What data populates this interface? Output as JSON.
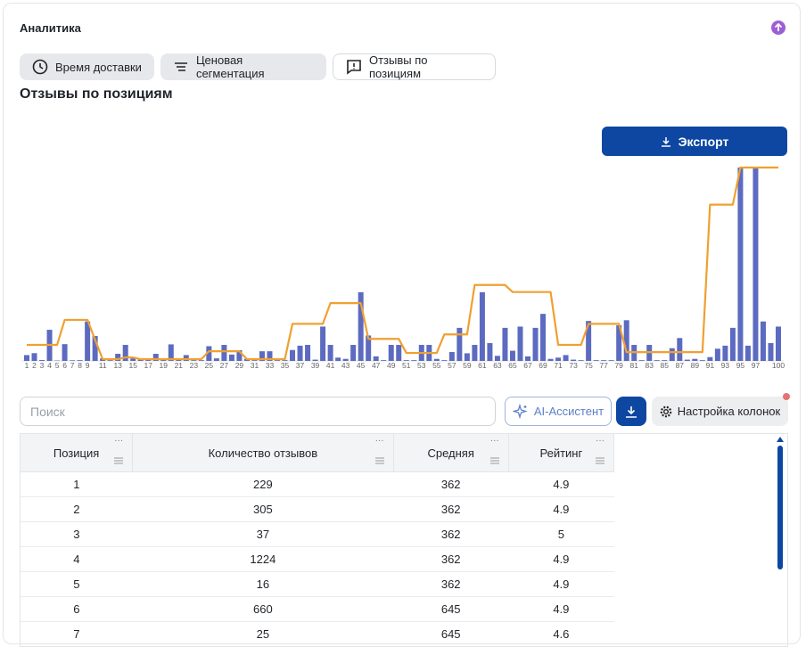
{
  "header": {
    "title": "Аналитика"
  },
  "tabs": [
    "Время доставки",
    "Ценовая сегментация",
    "Отзывы по позициям"
  ],
  "heading": "Отзывы по позициям",
  "export_button": "Экспорт",
  "search_placeholder": "Поиск",
  "ai_button": "AI-Ассистент",
  "columns_button": "Настройка колонок",
  "chart_data": {
    "type": "bar",
    "categories": [
      1,
      2,
      3,
      4,
      5,
      6,
      7,
      8,
      9,
      null,
      11,
      null,
      13,
      null,
      15,
      null,
      17,
      null,
      19,
      null,
      21,
      null,
      23,
      null,
      25,
      null,
      27,
      null,
      29,
      null,
      31,
      null,
      33,
      null,
      35,
      null,
      37,
      null,
      39,
      null,
      41,
      null,
      43,
      null,
      45,
      null,
      47,
      null,
      49,
      null,
      51,
      null,
      53,
      null,
      55,
      null,
      57,
      null,
      59,
      null,
      61,
      null,
      63,
      null,
      65,
      null,
      67,
      null,
      69,
      null,
      71,
      null,
      73,
      null,
      75,
      null,
      77,
      null,
      79,
      null,
      81,
      null,
      83,
      null,
      85,
      null,
      87,
      null,
      89,
      null,
      91,
      null,
      93,
      null,
      95,
      null,
      97,
      null,
      null,
      100
    ],
    "ylim": [
      0,
      7600
    ],
    "y2lim": [
      180,
      2370
    ],
    "series": [
      {
        "color": "#5c6bc0",
        "values": [
          229,
          305,
          37,
          1224,
          16,
          660,
          25,
          30,
          1550,
          980,
          100,
          30,
          280,
          630,
          100,
          50,
          50,
          280,
          100,
          650,
          50,
          230,
          30,
          30,
          580,
          100,
          630,
          250,
          420,
          80,
          30,
          380,
          380,
          30,
          30,
          430,
          600,
          630,
          50,
          1350,
          630,
          130,
          80,
          630,
          2700,
          1000,
          180,
          30,
          630,
          630,
          30,
          30,
          630,
          630,
          80,
          30,
          350,
          1300,
          300,
          630,
          2700,
          700,
          200,
          1300,
          400,
          1350,
          180,
          1300,
          1850,
          80,
          130,
          230,
          50,
          30,
          1570,
          30,
          30,
          30,
          1400,
          1600,
          630,
          30,
          630,
          30,
          30,
          500,
          900,
          50,
          80,
          30,
          150,
          480,
          600,
          1300,
          7600,
          600,
          7600,
          1550,
          700,
          1350
        ]
      },
      {
        "type": "line",
        "axis": "y2",
        "color": "#f0a030",
        "values": [
          362,
          362,
          362,
          362,
          362,
          645,
          645,
          645,
          645,
          420,
          200,
          200,
          200,
          220,
          220,
          200,
          200,
          200,
          200,
          200,
          200,
          200,
          200,
          200,
          290,
          290,
          290,
          290,
          290,
          200,
          200,
          200,
          200,
          200,
          200,
          600,
          600,
          600,
          600,
          600,
          835,
          835,
          835,
          835,
          835,
          430,
          430,
          430,
          430,
          430,
          270,
          270,
          270,
          270,
          270,
          480,
          480,
          480,
          480,
          1040,
          1040,
          1040,
          1040,
          1040,
          960,
          960,
          960,
          960,
          960,
          960,
          362,
          362,
          362,
          362,
          600,
          600,
          600,
          600,
          600,
          280,
          280,
          280,
          280,
          280,
          280,
          280,
          280,
          280,
          280,
          280,
          1950,
          1950,
          1950,
          1950,
          2370,
          2370,
          2370,
          2370,
          2370,
          2370
        ]
      }
    ]
  },
  "table": {
    "columns": [
      "Позиция",
      "Количество отзывов",
      "Средняя",
      "Рейтинг"
    ],
    "rows": [
      [
        "1",
        "229",
        "362",
        "4.9"
      ],
      [
        "2",
        "305",
        "362",
        "4.9"
      ],
      [
        "3",
        "37",
        "362",
        "5"
      ],
      [
        "4",
        "1224",
        "362",
        "4.9"
      ],
      [
        "5",
        "16",
        "362",
        "4.9"
      ],
      [
        "6",
        "660",
        "645",
        "4.9"
      ],
      [
        "7",
        "25",
        "645",
        "4.6"
      ]
    ]
  }
}
